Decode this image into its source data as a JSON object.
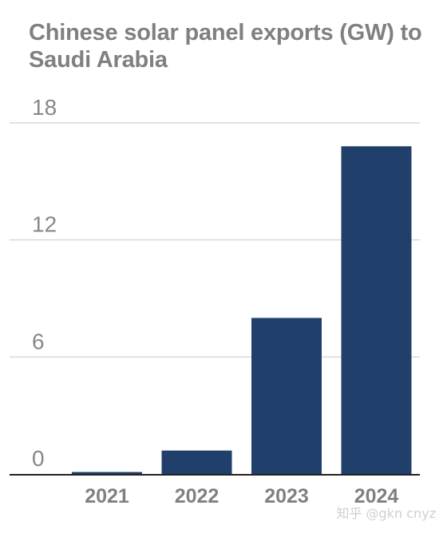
{
  "chart_data": {
    "type": "bar",
    "title": "Chinese solar panel exports (GW) to Saudi Arabia",
    "categories": [
      "2021",
      "2022",
      "2023",
      "2024"
    ],
    "values": [
      0.1,
      1.2,
      8.0,
      16.8
    ],
    "yticks": [
      0,
      6,
      12,
      18
    ],
    "ylim": [
      0,
      18
    ],
    "xlabel": "",
    "ylabel": "",
    "grid": true,
    "colors": {
      "bar": "#213f6b",
      "grid": "#d9d9d9",
      "axis": "#222222",
      "title": "#808080",
      "tick": "#888888"
    }
  },
  "watermark": "知乎 @gkn cnyz"
}
